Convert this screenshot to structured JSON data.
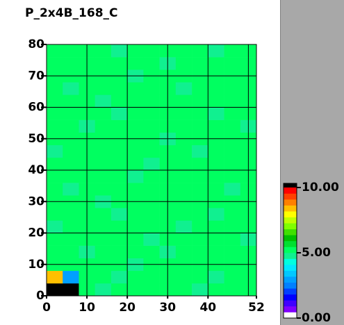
{
  "chart_data": {
    "type": "heatmap",
    "title": "P_2x4B_168_C",
    "xlim": [
      0,
      52
    ],
    "ylim": [
      0,
      80
    ],
    "xticks": [
      0,
      10,
      20,
      30,
      40,
      52
    ],
    "yticks": [
      0,
      10,
      20,
      30,
      40,
      50,
      60,
      70,
      80
    ],
    "grid_x": [
      10,
      20,
      30,
      40,
      50
    ],
    "clim": [
      0,
      10
    ],
    "cticks": [
      {
        "value": 10,
        "label": "10.00"
      },
      {
        "value": 5,
        "label": "5.00"
      },
      {
        "value": 0,
        "label": "0.00"
      }
    ],
    "colorscale": [
      "#ffffff",
      "#8000ff",
      "#4000ff",
      "#0000ff",
      "#0040ff",
      "#0080ff",
      "#00a0ff",
      "#00c8ff",
      "#00e8ff",
      "#00ffe0",
      "#10f090",
      "#00ff60",
      "#00e030",
      "#00c000",
      "#40e000",
      "#80ff00",
      "#c0ff00",
      "#ffff00",
      "#ffc000",
      "#ff8000",
      "#ff4000",
      "#ff0000"
    ],
    "over_color": "#000000",
    "z": [
      [
        11,
        11,
        5.2,
        4.9,
        5.3,
        5.1,
        5.0,
        5.4,
        5.2,
        4.8,
        5.1,
        5.3,
        5.0
      ],
      [
        8.5,
        3.0,
        5.1,
        5.3,
        4.9,
        5.2,
        5.4,
        5.0,
        5.1,
        5.3,
        4.9,
        5.2,
        5.1
      ],
      [
        5.0,
        5.3,
        5.2,
        5.0,
        5.1,
        4.9,
        5.2,
        5.3,
        5.0,
        5.1,
        5.4,
        5.0,
        5.2
      ],
      [
        5.3,
        5.1,
        4.9,
        5.2,
        5.4,
        5.0,
        5.1,
        4.9,
        5.3,
        5.2,
        5.0,
        5.1,
        5.3
      ],
      [
        5.1,
        5.2,
        5.3,
        5.1,
        5.0,
        5.3,
        4.9,
        5.2,
        5.1,
        5.0,
        5.3,
        5.2,
        4.9
      ],
      [
        4.9,
        5.0,
        5.1,
        5.4,
        5.2,
        5.1,
        5.3,
        5.0,
        4.9,
        5.3,
        5.1,
        5.0,
        5.2
      ],
      [
        5.2,
        5.4,
        5.0,
        5.1,
        4.9,
        5.2,
        5.0,
        5.3,
        5.2,
        5.1,
        4.9,
        5.3,
        5.1
      ],
      [
        5.0,
        5.1,
        5.2,
        4.9,
        5.3,
        5.0,
        5.2,
        5.1,
        5.4,
        5.0,
        5.2,
        5.1,
        5.0
      ],
      [
        5.3,
        4.9,
        5.1,
        5.2,
        5.0,
        5.4,
        5.1,
        5.0,
        5.2,
        5.3,
        5.0,
        4.9,
        5.2
      ],
      [
        5.1,
        5.2,
        5.0,
        5.3,
        5.1,
        4.9,
        5.3,
        5.2,
        5.0,
        5.1,
        5.2,
        5.4,
        5.0
      ],
      [
        5.2,
        5.0,
        5.3,
        5.1,
        5.2,
        5.0,
        4.9,
        5.1,
        5.3,
        5.2,
        5.1,
        5.0,
        5.3
      ],
      [
        4.9,
        5.3,
        5.1,
        5.0,
        5.4,
        5.2,
        5.1,
        5.3,
        5.0,
        4.9,
        5.3,
        5.1,
        5.2
      ],
      [
        5.1,
        5.0,
        5.2,
        5.3,
        5.0,
        5.1,
        5.2,
        4.9,
        5.1,
        5.2,
        5.0,
        5.3,
        5.1
      ],
      [
        5.3,
        5.2,
        4.9,
        5.1,
        5.2,
        5.3,
        5.0,
        5.2,
        5.4,
        5.1,
        5.2,
        5.0,
        4.9
      ],
      [
        5.0,
        5.1,
        5.3,
        5.2,
        4.9,
        5.0,
        5.3,
        5.1,
        5.0,
        5.3,
        4.9,
        5.2,
        5.1
      ],
      [
        5.2,
        5.3,
        5.0,
        4.9,
        5.1,
        5.2,
        5.1,
        5.0,
        5.2,
        5.0,
        5.3,
        5.1,
        5.2
      ],
      [
        5.1,
        4.9,
        5.2,
        5.3,
        5.2,
        5.1,
        5.4,
        5.3,
        4.9,
        5.2,
        5.1,
        5.0,
        5.3
      ],
      [
        5.0,
        5.2,
        5.1,
        5.0,
        5.3,
        4.9,
        5.0,
        5.2,
        5.3,
        5.1,
        5.0,
        5.2,
        5.1
      ],
      [
        5.3,
        5.1,
        5.0,
        5.2,
        5.1,
        5.3,
        5.2,
        4.9,
        5.1,
        5.0,
        5.2,
        5.3,
        5.0
      ],
      [
        5.1,
        5.3,
        5.2,
        5.1,
        4.9,
        5.0,
        5.1,
        5.3,
        5.2,
        5.1,
        4.9,
        5.1,
        5.2
      ]
    ]
  }
}
